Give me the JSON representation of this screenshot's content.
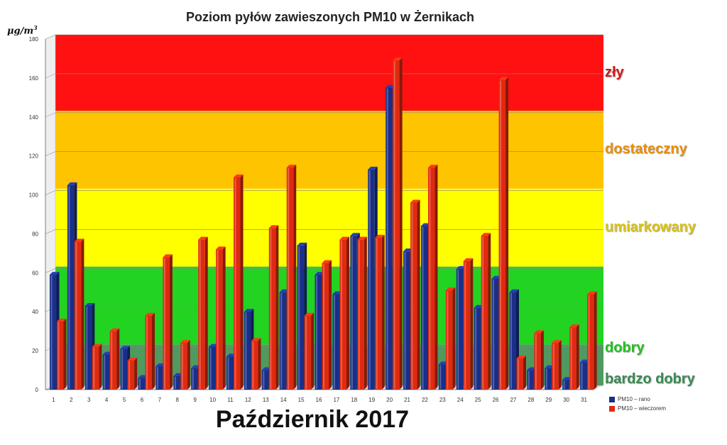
{
  "chart_data": {
    "type": "bar",
    "title": "Poziom pyłów zawieszonych PM10 w Żernikach",
    "ylabel_prefix": "μg/m",
    "ylabel_sup": "3",
    "ylim": [
      0,
      180
    ],
    "yticks": [
      0,
      20,
      40,
      60,
      80,
      100,
      120,
      140,
      160,
      180
    ],
    "categories": [
      "1",
      "2",
      "3",
      "4",
      "5",
      "6",
      "7",
      "8",
      "9",
      "10",
      "11",
      "12",
      "13",
      "14",
      "15",
      "16",
      "17",
      "18",
      "19",
      "20",
      "21",
      "22",
      "23",
      "24",
      "25",
      "26",
      "27",
      "28",
      "29",
      "30",
      "31"
    ],
    "series": [
      {
        "name": "PM10 – rano",
        "color": "#1a2f8a",
        "values": [
          59,
          105,
          43,
          18,
          21,
          6,
          12,
          7,
          11,
          22,
          17,
          40,
          10,
          50,
          74,
          59,
          49,
          79,
          113,
          155,
          71,
          84,
          13,
          62,
          42,
          57,
          50,
          10,
          11,
          5,
          14
        ]
      },
      {
        "name": "PM10 – wieczorem",
        "color": "#e02a10",
        "values": [
          35,
          76,
          22,
          30,
          15,
          38,
          68,
          24,
          77,
          72,
          109,
          25,
          83,
          114,
          38,
          65,
          77,
          77,
          78,
          169,
          96,
          114,
          51,
          66,
          79,
          159,
          16,
          29,
          24,
          32,
          49
        ]
      }
    ],
    "bands": [
      {
        "label": "bardzo dobry",
        "from": 0,
        "to": 21,
        "color": "#4f9a5e",
        "text_color": "#3a8a52"
      },
      {
        "label": "dobry",
        "from": 21,
        "to": 61,
        "color": "#22d322",
        "text_color": "#1fc21f"
      },
      {
        "label": "umiarkowany",
        "from": 61,
        "to": 101,
        "color": "#ffff00",
        "text_color": "#d9c414"
      },
      {
        "label": "dostateczny",
        "from": 101,
        "to": 141,
        "color": "#ffc400",
        "text_color": "#e8900e"
      },
      {
        "label": "zły",
        "from": 141,
        "to": 180,
        "color": "#ff1111",
        "text_color": "#d01818"
      }
    ],
    "subtitle_bottom": "Październik 2017",
    "legend_position": "bottom-right",
    "grid": true
  }
}
